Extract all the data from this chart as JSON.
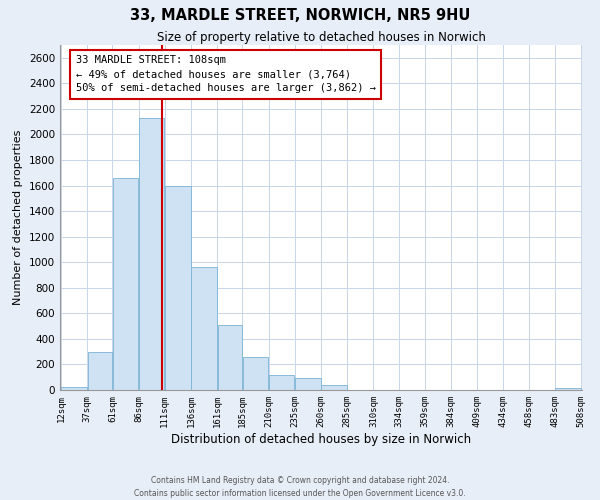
{
  "title": "33, MARDLE STREET, NORWICH, NR5 9HU",
  "subtitle": "Size of property relative to detached houses in Norwich",
  "xlabel": "Distribution of detached houses by size in Norwich",
  "ylabel": "Number of detached properties",
  "bar_left_edges": [
    12,
    37,
    61,
    86,
    111,
    136,
    161,
    185,
    210,
    235,
    260,
    285,
    310,
    334,
    359,
    384,
    409,
    434,
    458,
    483
  ],
  "bar_widths": [
    25,
    24,
    25,
    25,
    25,
    25,
    24,
    25,
    25,
    25,
    25,
    25,
    24,
    25,
    25,
    25,
    25,
    24,
    25,
    25
  ],
  "bar_heights": [
    20,
    295,
    1660,
    2130,
    1595,
    960,
    505,
    255,
    120,
    95,
    40,
    0,
    0,
    0,
    0,
    0,
    0,
    0,
    0,
    15
  ],
  "bar_color": "#cfe2f3",
  "bar_edgecolor": "#7ab3d4",
  "tick_labels": [
    "12sqm",
    "37sqm",
    "61sqm",
    "86sqm",
    "111sqm",
    "136sqm",
    "161sqm",
    "185sqm",
    "210sqm",
    "235sqm",
    "260sqm",
    "285sqm",
    "310sqm",
    "334sqm",
    "359sqm",
    "384sqm",
    "409sqm",
    "434sqm",
    "458sqm",
    "483sqm",
    "508sqm"
  ],
  "ylim": [
    0,
    2700
  ],
  "yticks": [
    0,
    200,
    400,
    600,
    800,
    1000,
    1200,
    1400,
    1600,
    1800,
    2000,
    2200,
    2400,
    2600
  ],
  "vline_x": 108,
  "vline_color": "#cc0000",
  "annotation_title": "33 MARDLE STREET: 108sqm",
  "annotation_line1": "← 49% of detached houses are smaller (3,764)",
  "annotation_line2": "50% of semi-detached houses are larger (3,862) →",
  "footer_line1": "Contains HM Land Registry data © Crown copyright and database right 2024.",
  "footer_line2": "Contains public sector information licensed under the Open Government Licence v3.0.",
  "background_color": "#e8eef8",
  "plot_bg_color": "#ffffff",
  "grid_color": "#c8d4e8"
}
